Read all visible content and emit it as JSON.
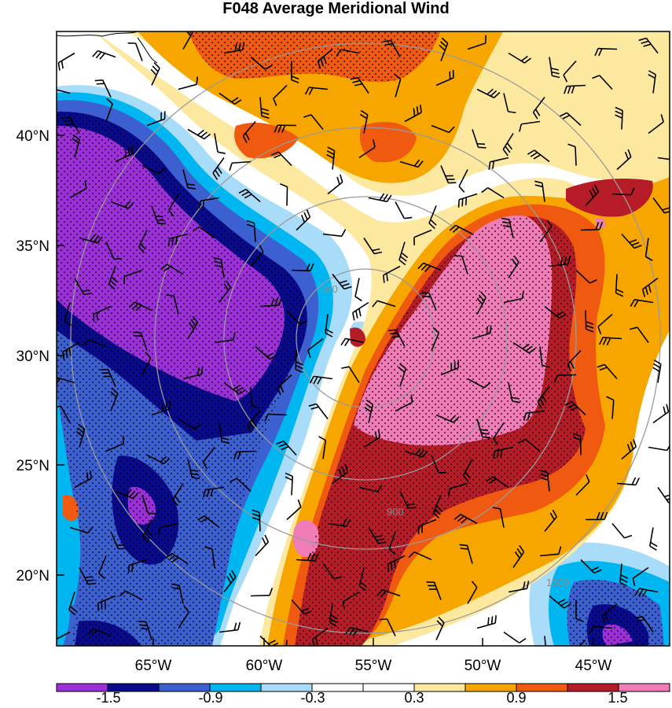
{
  "title": "F048 Average Meridional Wind",
  "lat_labels": [
    "40°N",
    "35°N",
    "30°N",
    "25°N",
    "20°N"
  ],
  "lon_labels": [
    "65°W",
    "60°W",
    "55°W",
    "50°W",
    "45°W"
  ],
  "range_ring_labels": [
    "300",
    "900",
    "1500"
  ],
  "colorbar": {
    "colors": [
      "#9b30d8",
      "#0a0a8c",
      "#3c60d0",
      "#00b6f0",
      "#a8dcf8",
      "#ffffff",
      "#ffffff",
      "#fde8a0",
      "#f7a600",
      "#f05a10",
      "#b51c28",
      "#f07cb8"
    ],
    "tick_labels": [
      "-1.5",
      "-0.9",
      "-0.3",
      "0.3",
      "0.9",
      "1.5"
    ]
  }
}
